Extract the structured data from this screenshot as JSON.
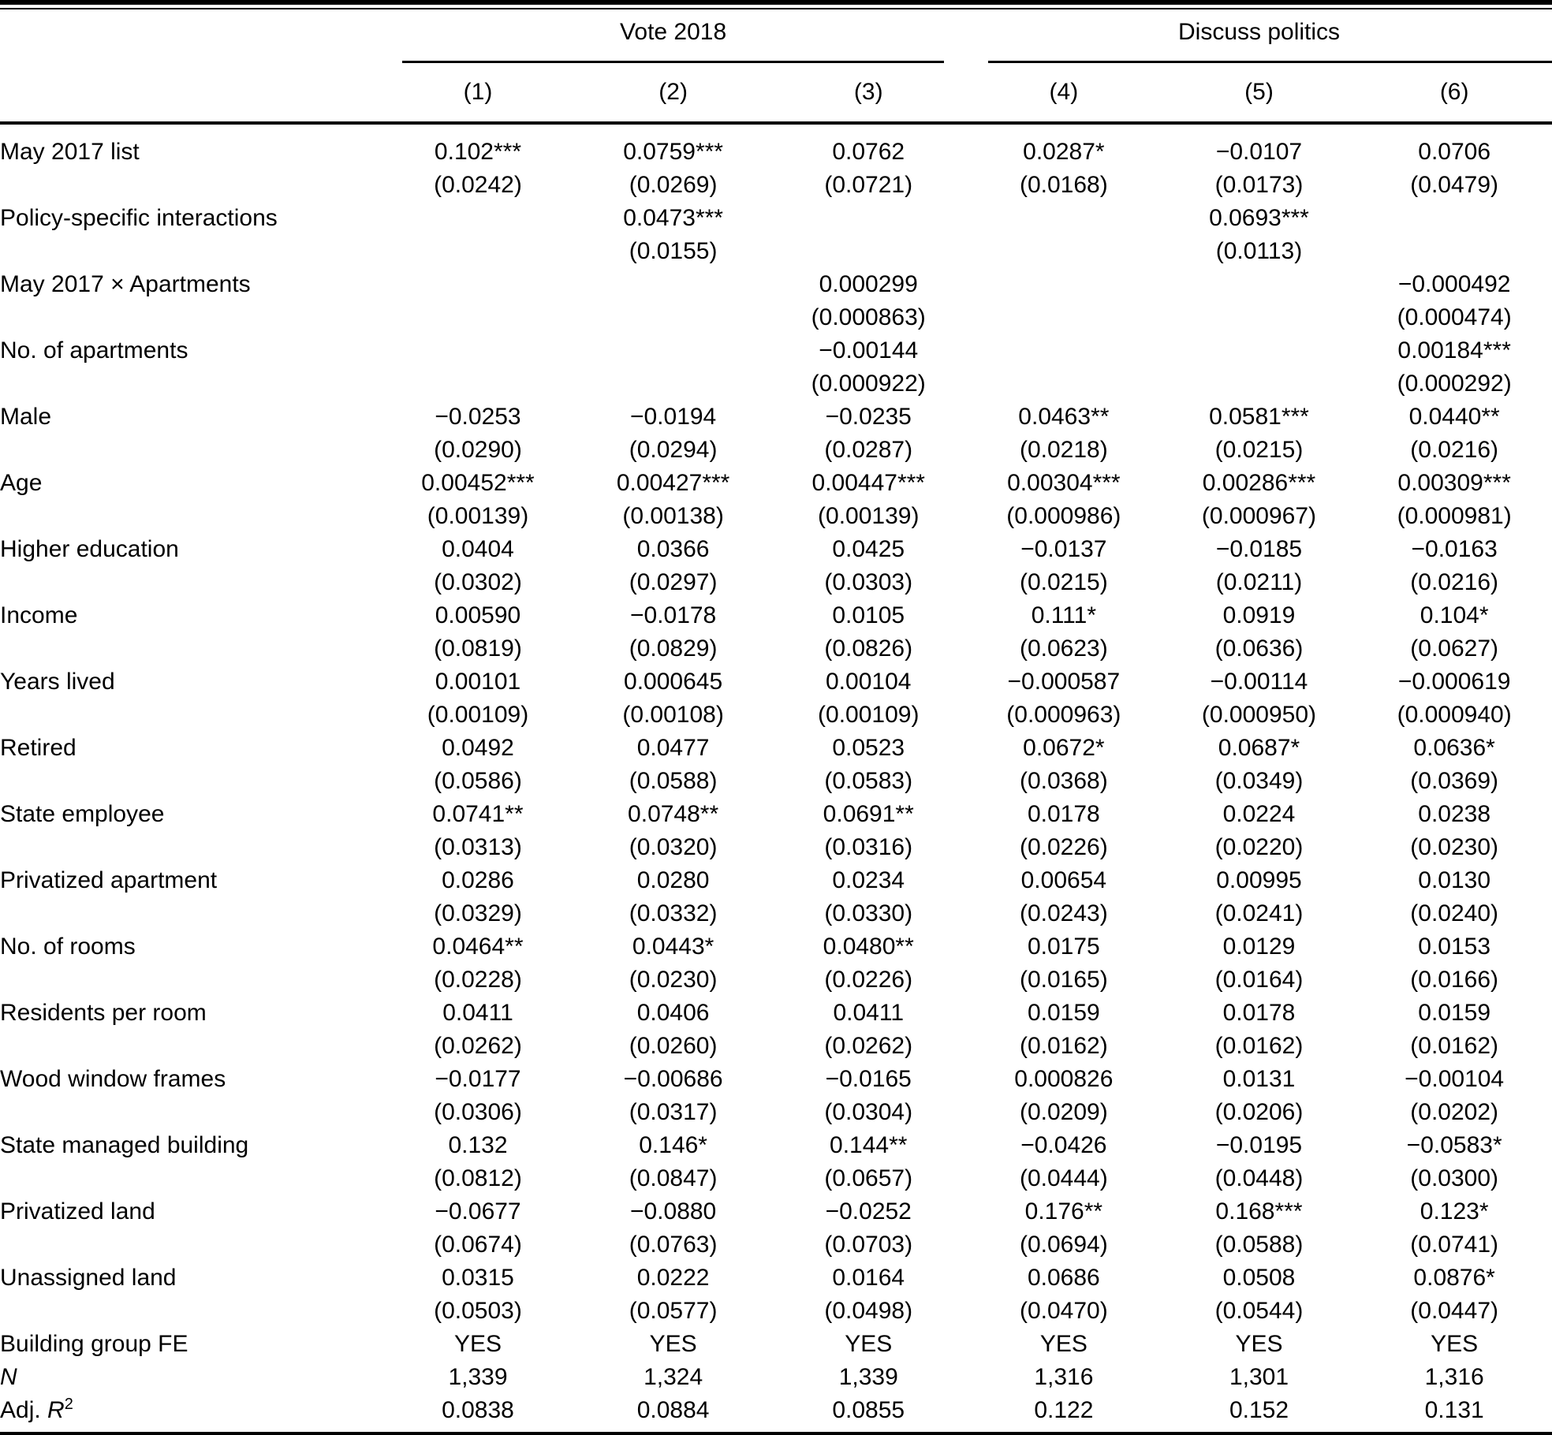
{
  "table": {
    "col_groups": [
      {
        "label": "Vote 2018",
        "columns": [
          "(1)",
          "(2)",
          "(3)"
        ]
      },
      {
        "label": "Discuss politics",
        "columns": [
          "(4)",
          "(5)",
          "(6)"
        ]
      }
    ],
    "rows": [
      {
        "label": "May 2017 list",
        "coef": [
          "0.102***",
          "0.0759***",
          "0.0762",
          "0.0287*",
          "−0.0107",
          "0.0706"
        ],
        "se": [
          "(0.0242)",
          "(0.0269)",
          "(0.0721)",
          "(0.0168)",
          "(0.0173)",
          "(0.0479)"
        ]
      },
      {
        "label": "Policy-specific interactions",
        "coef": [
          "",
          "0.0473***",
          "",
          "",
          "0.0693***",
          ""
        ],
        "se": [
          "",
          "(0.0155)",
          "",
          "",
          "(0.0113)",
          ""
        ]
      },
      {
        "label": "May 2017 × Apartments",
        "coef": [
          "",
          "",
          "0.000299",
          "",
          "",
          "−0.000492"
        ],
        "se": [
          "",
          "",
          "(0.000863)",
          "",
          "",
          "(0.000474)"
        ]
      },
      {
        "label": "No. of apartments",
        "coef": [
          "",
          "",
          "−0.00144",
          "",
          "",
          "0.00184***"
        ],
        "se": [
          "",
          "",
          "(0.000922)",
          "",
          "",
          "(0.000292)"
        ]
      },
      {
        "label": "Male",
        "coef": [
          "−0.0253",
          "−0.0194",
          "−0.0235",
          "0.0463**",
          "0.0581***",
          "0.0440**"
        ],
        "se": [
          "(0.0290)",
          "(0.0294)",
          "(0.0287)",
          "(0.0218)",
          "(0.0215)",
          "(0.0216)"
        ]
      },
      {
        "label": "Age",
        "coef": [
          "0.00452***",
          "0.00427***",
          "0.00447***",
          "0.00304***",
          "0.00286***",
          "0.00309***"
        ],
        "se": [
          "(0.00139)",
          "(0.00138)",
          "(0.00139)",
          "(0.000986)",
          "(0.000967)",
          "(0.000981)"
        ]
      },
      {
        "label": "Higher education",
        "coef": [
          "0.0404",
          "0.0366",
          "0.0425",
          "−0.0137",
          "−0.0185",
          "−0.0163"
        ],
        "se": [
          "(0.0302)",
          "(0.0297)",
          "(0.0303)",
          "(0.0215)",
          "(0.0211)",
          "(0.0216)"
        ]
      },
      {
        "label": "Income",
        "coef": [
          "0.00590",
          "−0.0178",
          "0.0105",
          "0.111*",
          "0.0919",
          "0.104*"
        ],
        "se": [
          "(0.0819)",
          "(0.0829)",
          "(0.0826)",
          "(0.0623)",
          "(0.0636)",
          "(0.0627)"
        ]
      },
      {
        "label": "Years lived",
        "coef": [
          "0.00101",
          "0.000645",
          "0.00104",
          "−0.000587",
          "−0.00114",
          "−0.000619"
        ],
        "se": [
          "(0.00109)",
          "(0.00108)",
          "(0.00109)",
          "(0.000963)",
          "(0.000950)",
          "(0.000940)"
        ]
      },
      {
        "label": "Retired",
        "coef": [
          "0.0492",
          "0.0477",
          "0.0523",
          "0.0672*",
          "0.0687*",
          "0.0636*"
        ],
        "se": [
          "(0.0586)",
          "(0.0588)",
          "(0.0583)",
          "(0.0368)",
          "(0.0349)",
          "(0.0369)"
        ]
      },
      {
        "label": "State employee",
        "coef": [
          "0.0741**",
          "0.0748**",
          "0.0691**",
          "0.0178",
          "0.0224",
          "0.0238"
        ],
        "se": [
          "(0.0313)",
          "(0.0320)",
          "(0.0316)",
          "(0.0226)",
          "(0.0220)",
          "(0.0230)"
        ]
      },
      {
        "label": "Privatized apartment",
        "coef": [
          "0.0286",
          "0.0280",
          "0.0234",
          "0.00654",
          "0.00995",
          "0.0130"
        ],
        "se": [
          "(0.0329)",
          "(0.0332)",
          "(0.0330)",
          "(0.0243)",
          "(0.0241)",
          "(0.0240)"
        ]
      },
      {
        "label": "No. of rooms",
        "coef": [
          "0.0464**",
          "0.0443*",
          "0.0480**",
          "0.0175",
          "0.0129",
          "0.0153"
        ],
        "se": [
          "(0.0228)",
          "(0.0230)",
          "(0.0226)",
          "(0.0165)",
          "(0.0164)",
          "(0.0166)"
        ]
      },
      {
        "label": "Residents per room",
        "coef": [
          "0.0411",
          "0.0406",
          "0.0411",
          "0.0159",
          "0.0178",
          "0.0159"
        ],
        "se": [
          "(0.0262)",
          "(0.0260)",
          "(0.0262)",
          "(0.0162)",
          "(0.0162)",
          "(0.0162)"
        ]
      },
      {
        "label": "Wood window frames",
        "coef": [
          "−0.0177",
          "−0.00686",
          "−0.0165",
          "0.000826",
          "0.0131",
          "−0.00104"
        ],
        "se": [
          "(0.0306)",
          "(0.0317)",
          "(0.0304)",
          "(0.0209)",
          "(0.0206)",
          "(0.0202)"
        ]
      },
      {
        "label": "State managed building",
        "coef": [
          "0.132",
          "0.146*",
          "0.144**",
          "−0.0426",
          "−0.0195",
          "−0.0583*"
        ],
        "se": [
          "(0.0812)",
          "(0.0847)",
          "(0.0657)",
          "(0.0444)",
          "(0.0448)",
          "(0.0300)"
        ]
      },
      {
        "label": "Privatized land",
        "coef": [
          "−0.0677",
          "−0.0880",
          "−0.0252",
          "0.176**",
          "0.168***",
          "0.123*"
        ],
        "se": [
          "(0.0674)",
          "(0.0763)",
          "(0.0703)",
          "(0.0694)",
          "(0.0588)",
          "(0.0741)"
        ]
      },
      {
        "label": "Unassigned land",
        "coef": [
          "0.0315",
          "0.0222",
          "0.0164",
          "0.0686",
          "0.0508",
          "0.0876*"
        ],
        "se": [
          "(0.0503)",
          "(0.0577)",
          "(0.0498)",
          "(0.0470)",
          "(0.0544)",
          "(0.0447)"
        ]
      }
    ],
    "stat_rows": [
      {
        "label_prefix": "Building group FE",
        "values": [
          "YES",
          "YES",
          "YES",
          "YES",
          "YES",
          "YES"
        ]
      },
      {
        "label_italic": "N",
        "values": [
          "1,339",
          "1,324",
          "1,339",
          "1,316",
          "1,301",
          "1,316"
        ]
      },
      {
        "label_prefix": "Adj. ",
        "label_italic": "R",
        "label_sup": "2",
        "values": [
          "0.0838",
          "0.0884",
          "0.0855",
          "0.122",
          "0.152",
          "0.131"
        ]
      }
    ]
  }
}
